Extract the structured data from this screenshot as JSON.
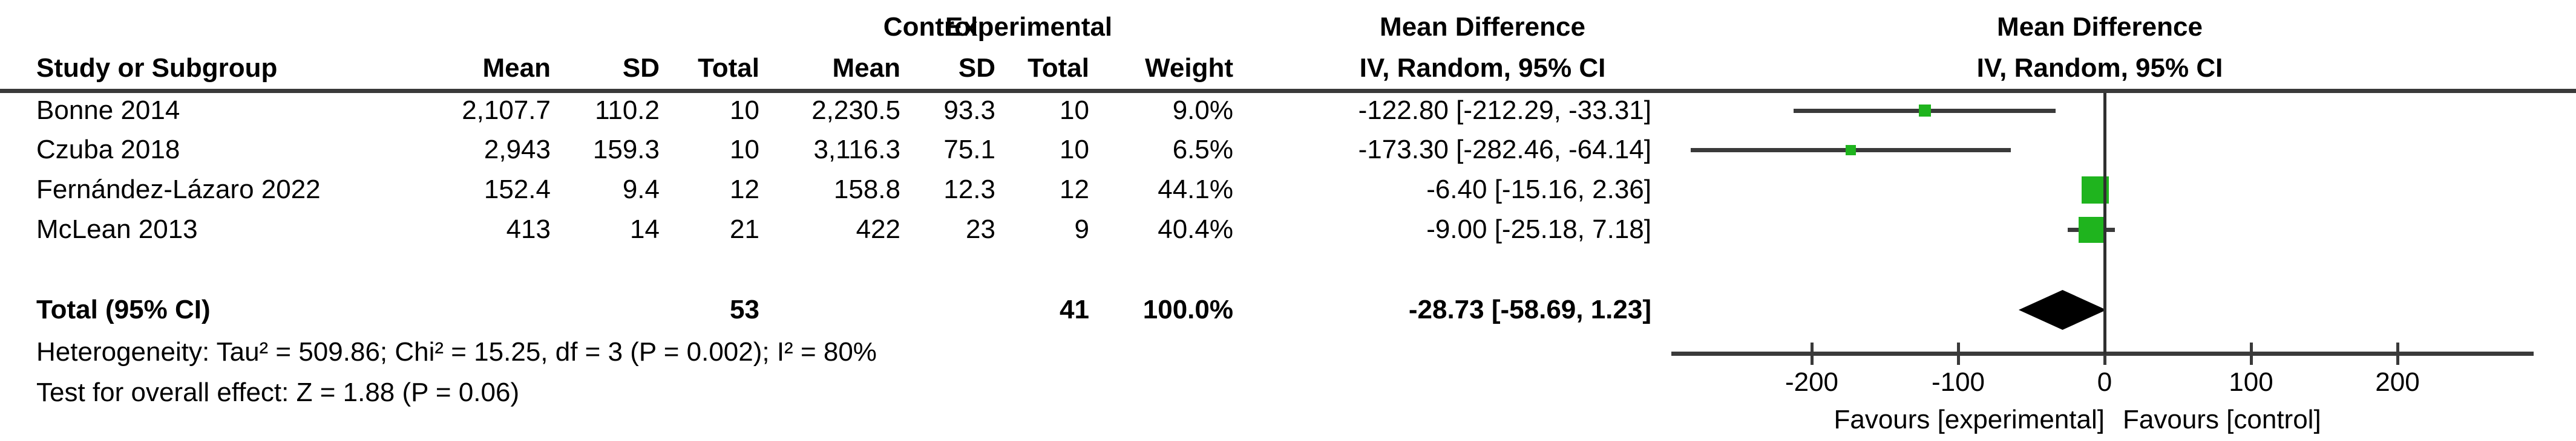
{
  "table": {
    "header": {
      "group_experimental": "Experimental",
      "group_control": "Control",
      "stat_title": "Mean Difference",
      "stat_subtitle": "IV, Random, 95% CI",
      "study": "Study or Subgroup",
      "exp_mean": "Mean",
      "exp_sd": "SD",
      "exp_total": "Total",
      "ctrl_mean": "Mean",
      "ctrl_sd": "SD",
      "ctrl_total": "Total",
      "weight": "Weight",
      "plot_title": "Mean Difference",
      "plot_subtitle": "IV, Random, 95% CI"
    },
    "rows": [
      {
        "study": "Bonne 2014",
        "exp_mean": "2,107.7",
        "exp_sd": "110.2",
        "exp_total": "10",
        "ctrl_mean": "2,230.5",
        "ctrl_sd": "93.3",
        "ctrl_total": "10",
        "weight": "9.0%",
        "ci": "-122.80 [-212.29, -33.31]"
      },
      {
        "study": "Czuba 2018",
        "exp_mean": "2,943",
        "exp_sd": "159.3",
        "exp_total": "10",
        "ctrl_mean": "3,116.3",
        "ctrl_sd": "75.1",
        "ctrl_total": "10",
        "weight": "6.5%",
        "ci": "-173.30 [-282.46, -64.14]"
      },
      {
        "study": "Fernández-Lázaro 2022",
        "exp_mean": "152.4",
        "exp_sd": "9.4",
        "exp_total": "12",
        "ctrl_mean": "158.8",
        "ctrl_sd": "12.3",
        "ctrl_total": "12",
        "weight": "44.1%",
        "ci": "-6.40 [-15.16, 2.36]"
      },
      {
        "study": "McLean 2013",
        "exp_mean": "413",
        "exp_sd": "14",
        "exp_total": "21",
        "ctrl_mean": "422",
        "ctrl_sd": "23",
        "ctrl_total": "9",
        "weight": "40.4%",
        "ci": "-9.00 [-25.18, 7.18]"
      }
    ],
    "total_row": {
      "label": "Total (95% CI)",
      "exp_total": "53",
      "ctrl_total": "41",
      "weight": "100.0%",
      "ci": "-28.73 [-58.69, 1.23]"
    },
    "heterogeneity": "Heterogeneity: Tau² = 509.86; Chi² = 15.25, df = 3 (P = 0.002); I² = 80%",
    "overall_effect": "Test for overall effect: Z = 1.88 (P = 0.06)"
  },
  "chart_data": {
    "type": "forest",
    "effect_measure": "Mean Difference",
    "model": "IV, Random, 95% CI",
    "studies": [
      {
        "name": "Bonne 2014",
        "md": -122.8,
        "ci_low": -212.29,
        "ci_high": -33.31,
        "weight_pct": 9.0
      },
      {
        "name": "Czuba 2018",
        "md": -173.3,
        "ci_low": -282.46,
        "ci_high": -64.14,
        "weight_pct": 6.5
      },
      {
        "name": "Fernández-Lázaro 2022",
        "md": -6.4,
        "ci_low": -15.16,
        "ci_high": 2.36,
        "weight_pct": 44.1
      },
      {
        "name": "McLean 2013",
        "md": -9.0,
        "ci_low": -25.18,
        "ci_high": 7.18,
        "weight_pct": 40.4
      }
    ],
    "total": {
      "name": "Total (95% CI)",
      "md": -28.73,
      "ci_low": -58.69,
      "ci_high": 1.23,
      "weight_pct": 100.0
    },
    "axis": {
      "ticks": [
        -200,
        -100,
        0,
        100,
        200
      ],
      "range": [
        -296,
        293
      ],
      "zero_line": 0,
      "label_left": "Favours [experimental]",
      "label_right": "Favours [control]"
    },
    "marker_color": "#1fb41e",
    "line_color": "#3a3a3a",
    "diamond_color": "#000000"
  }
}
